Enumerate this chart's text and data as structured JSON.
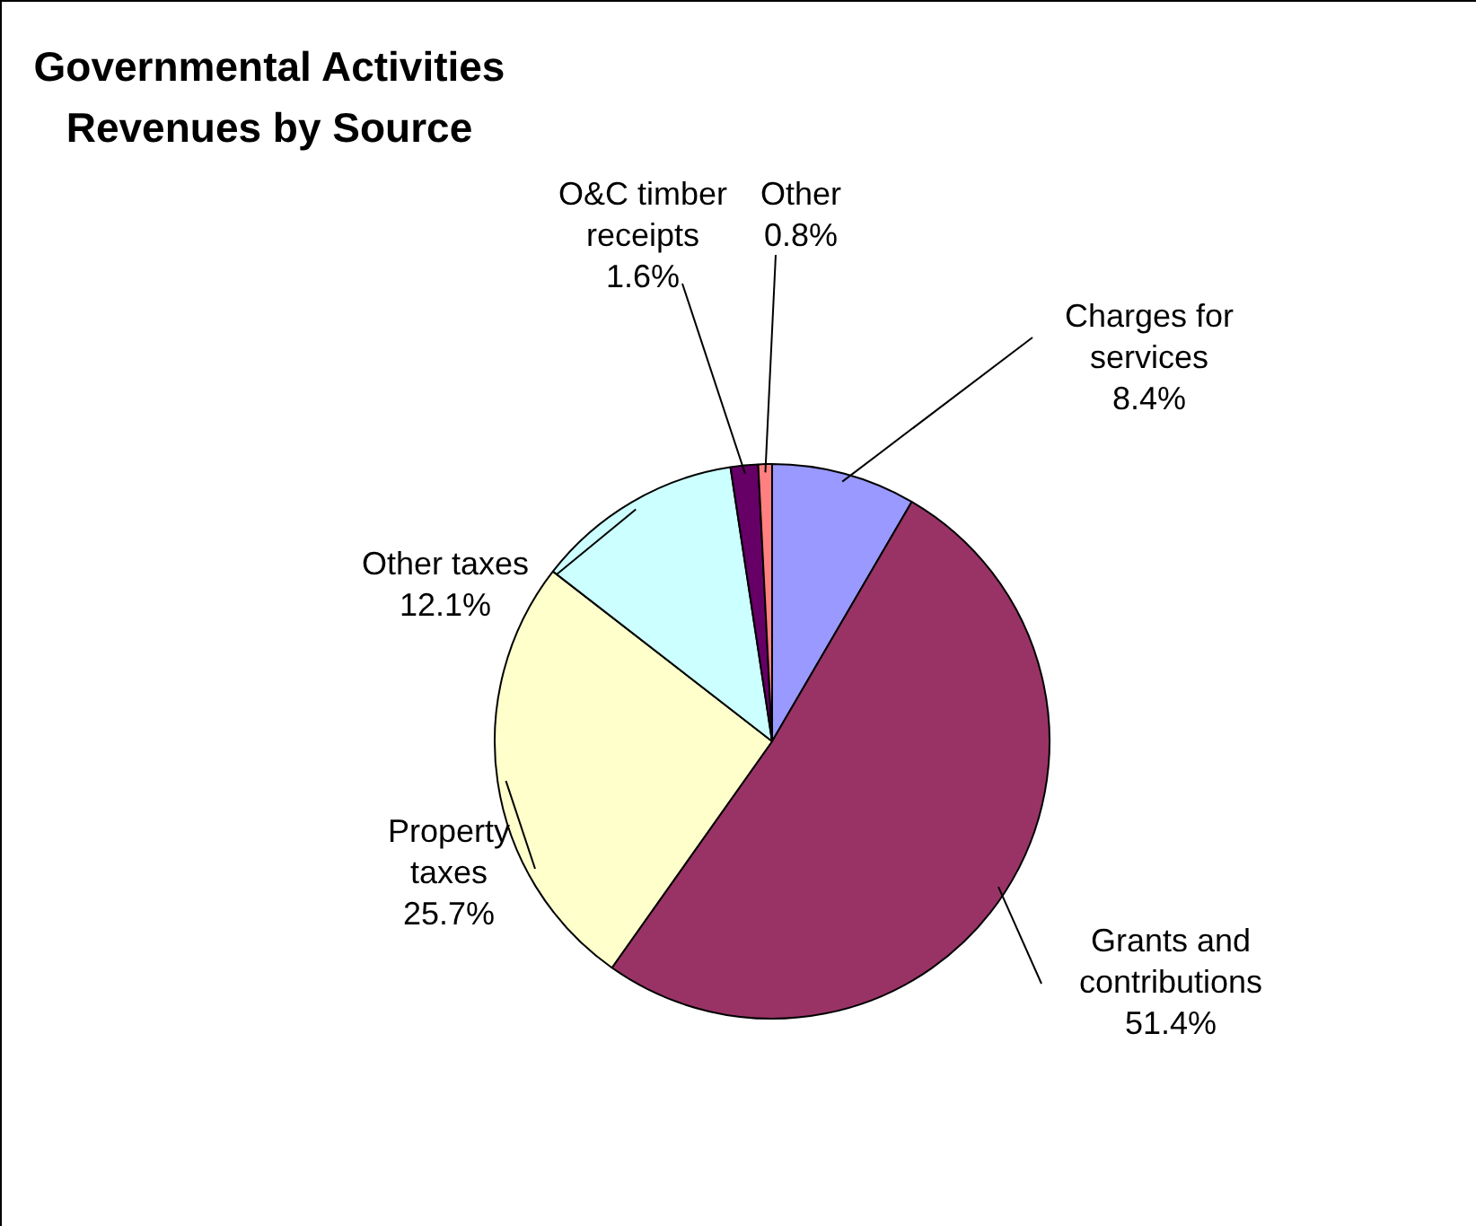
{
  "chart_data": {
    "type": "pie",
    "title": "Governmental Activities Revenues by Source",
    "categories": [
      "Charges for services",
      "Grants and contributions",
      "Property taxes",
      "Other taxes",
      "O&C timber receipts",
      "Other"
    ],
    "values": [
      8.4,
      51.4,
      25.7,
      12.1,
      1.6,
      0.8
    ],
    "colors": [
      "#9999ff",
      "#993366",
      "#ffffcc",
      "#ccffff",
      "#660066",
      "#ff8080"
    ],
    "value_labels": [
      "8.4%",
      "51.4%",
      "25.7%",
      "12.1%",
      "1.6%",
      "0.8%"
    ],
    "legend": false
  }
}
